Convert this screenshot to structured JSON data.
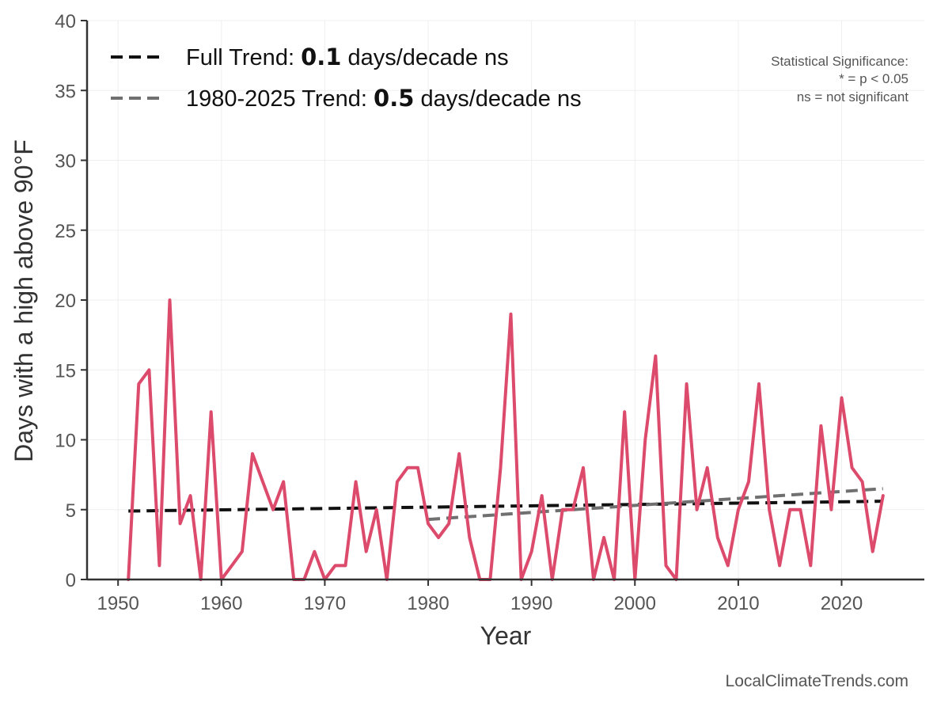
{
  "chart_data": {
    "type": "line",
    "xlabel": "Year",
    "ylabel": "Days with a high above 90°F",
    "xlim": [
      1947,
      2028
    ],
    "ylim": [
      0,
      40
    ],
    "x_ticks": [
      1950,
      1960,
      1970,
      1980,
      1990,
      2000,
      2010,
      2020
    ],
    "y_ticks": [
      0,
      5,
      10,
      15,
      20,
      25,
      30,
      35,
      40
    ],
    "grid": true,
    "legend_position": "top-left",
    "series": [
      {
        "color": "#dc4a6c",
        "x": [
          1951,
          1952,
          1953,
          1954,
          1955,
          1956,
          1957,
          1958,
          1959,
          1960,
          1961,
          1962,
          1963,
          1964,
          1965,
          1966,
          1967,
          1968,
          1969,
          1970,
          1971,
          1972,
          1973,
          1974,
          1975,
          1976,
          1977,
          1978,
          1979,
          1980,
          1981,
          1982,
          1983,
          1984,
          1985,
          1986,
          1987,
          1988,
          1989,
          1990,
          1991,
          1992,
          1993,
          1994,
          1995,
          1996,
          1997,
          1998,
          1999,
          2000,
          2001,
          2002,
          2003,
          2004,
          2005,
          2006,
          2007,
          2008,
          2009,
          2010,
          2011,
          2012,
          2013,
          2014,
          2015,
          2016,
          2017,
          2018,
          2019,
          2020,
          2021,
          2022,
          2023,
          2024
        ],
        "values": [
          0,
          14,
          15,
          1,
          20,
          4,
          6,
          0,
          12,
          0,
          1,
          2,
          9,
          7,
          5,
          7,
          0,
          0,
          2,
          0,
          1,
          1,
          7,
          2,
          5,
          0,
          7,
          8,
          8,
          4,
          3,
          4,
          9,
          3,
          0,
          0,
          8,
          19,
          0,
          2,
          6,
          0,
          5,
          5,
          8,
          0,
          3,
          0,
          12,
          0,
          10,
          16,
          1,
          0,
          14,
          5,
          8,
          3,
          1,
          5,
          7,
          14,
          5,
          1,
          5,
          5,
          1,
          11,
          5,
          13,
          8,
          7,
          2,
          6
        ]
      }
    ],
    "trend_lines": [
      {
        "label_prefix": "Full Trend: ",
        "value": "0.1",
        "label_suffix": " days/decade ns",
        "color": "#111111",
        "x": [
          1951,
          2024
        ],
        "y": [
          4.9,
          5.6
        ]
      },
      {
        "label_prefix": "1980-2025 Trend: ",
        "value": "0.5",
        "label_suffix": " days/decade ns",
        "color": "#707070",
        "x": [
          1980,
          2024
        ],
        "y": [
          4.3,
          6.5
        ]
      }
    ],
    "annotations": {
      "significance_title": "Statistical Significance:",
      "significance_star": "* = p < 0.05",
      "significance_ns": "ns = not significant",
      "credit": "LocalClimateTrends.com"
    }
  }
}
